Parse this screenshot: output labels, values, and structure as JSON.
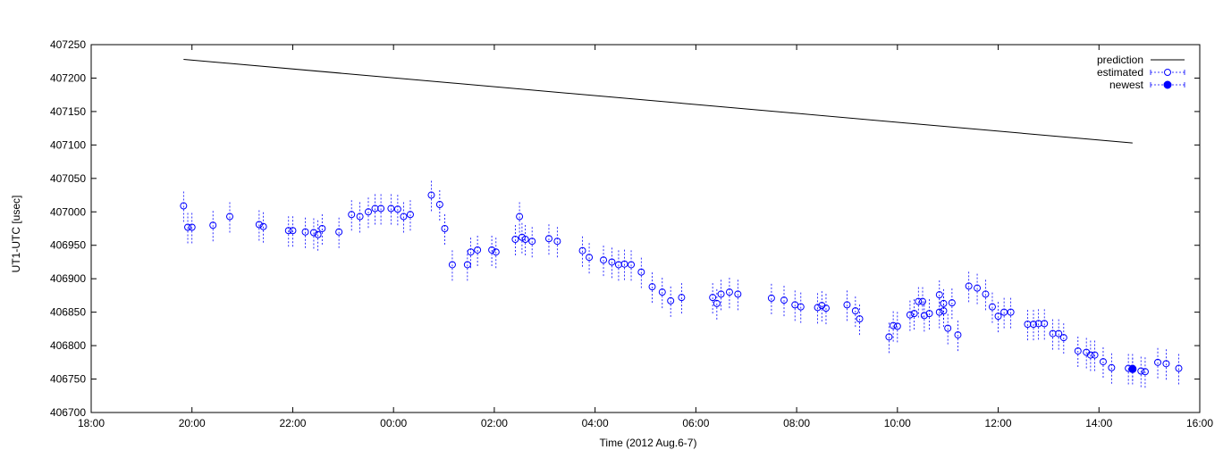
{
  "chart_data": {
    "type": "scatter",
    "xlabel": "Time (2012 Aug.6-7)",
    "ylabel": "UT1-UTC [usec]",
    "xlim": [
      "18:00",
      "16:00"
    ],
    "ylim": [
      406700,
      407250
    ],
    "x_ticks": [
      "18:00",
      "20:00",
      "22:00",
      "00:00",
      "02:00",
      "04:00",
      "06:00",
      "08:00",
      "10:00",
      "12:00",
      "14:00",
      "16:00"
    ],
    "y_ticks": [
      "407250",
      "407200",
      "407150",
      "407100",
      "407050",
      "407000",
      "406950",
      "406900",
      "406850",
      "406800",
      "406750",
      "406700"
    ],
    "legend": {
      "position": "top-right"
    },
    "series": [
      {
        "name": "prediction",
        "style": "line",
        "color": "#000000",
        "points": [
          [
            "19:50",
            407228
          ],
          [
            "14:40",
            407103
          ]
        ]
      },
      {
        "name": "estimated",
        "style": "open-circle-errorbar",
        "color": "#0000ff",
        "error": 24,
        "points": [
          [
            "19:50",
            407009
          ],
          [
            "19:55",
            406977
          ],
          [
            "20:00",
            406977
          ],
          [
            "20:25",
            406980
          ],
          [
            "20:45",
            406993
          ],
          [
            "21:20",
            406981
          ],
          [
            "21:25",
            406978
          ],
          [
            "21:55",
            406972
          ],
          [
            "22:00",
            406972
          ],
          [
            "22:15",
            406970
          ],
          [
            "22:25",
            406969
          ],
          [
            "22:30",
            406966
          ],
          [
            "22:35",
            406975
          ],
          [
            "22:55",
            406970
          ],
          [
            "23:10",
            406996
          ],
          [
            "23:20",
            406993
          ],
          [
            "23:30",
            407000
          ],
          [
            "23:38",
            407005
          ],
          [
            "23:45",
            407005
          ],
          [
            "23:57",
            407005
          ],
          [
            "0:05",
            407004
          ],
          [
            "0:12",
            406993
          ],
          [
            "0:20",
            406996
          ],
          [
            "0:45",
            407025
          ],
          [
            "0:55",
            407011
          ],
          [
            "1:01",
            406975
          ],
          [
            "1:10",
            406921
          ],
          [
            "1:28",
            406921
          ],
          [
            "1:32",
            406940
          ],
          [
            "1:40",
            406943
          ],
          [
            "1:57",
            406943
          ],
          [
            "2:02",
            406940
          ],
          [
            "2:25",
            406959
          ],
          [
            "2:30",
            406993
          ],
          [
            "2:33",
            406962
          ],
          [
            "2:37",
            406959
          ],
          [
            "2:45",
            406956
          ],
          [
            "3:05",
            406960
          ],
          [
            "3:15",
            406956
          ],
          [
            "3:45",
            406942
          ],
          [
            "3:53",
            406932
          ],
          [
            "4:10",
            406928
          ],
          [
            "4:20",
            406925
          ],
          [
            "4:28",
            406921
          ],
          [
            "4:35",
            406922
          ],
          [
            "4:43",
            406921
          ],
          [
            "4:55",
            406910
          ],
          [
            "5:08",
            406888
          ],
          [
            "5:20",
            406880
          ],
          [
            "5:30",
            406867
          ],
          [
            "5:43",
            406872
          ],
          [
            "6:20",
            406872
          ],
          [
            "6:25",
            406863
          ],
          [
            "6:30",
            406877
          ],
          [
            "6:40",
            406880
          ],
          [
            "6:50",
            406877
          ],
          [
            "7:30",
            406871
          ],
          [
            "7:45",
            406868
          ],
          [
            "7:58",
            406861
          ],
          [
            "8:05",
            406858
          ],
          [
            "8:25",
            406857
          ],
          [
            "8:30",
            406860
          ],
          [
            "8:35",
            406856
          ],
          [
            "9:00",
            406861
          ],
          [
            "9:10",
            406852
          ],
          [
            "9:15",
            406840
          ],
          [
            "10:20",
            406848
          ],
          [
            "10:32",
            406845
          ],
          [
            "10:38",
            406848
          ],
          [
            "10:50",
            406850
          ],
          [
            "10:55",
            406852
          ],
          [
            "11:00",
            406826
          ],
          [
            "11:12",
            406816
          ],
          [
            "9:50",
            406813
          ],
          [
            "9:55",
            406830
          ],
          [
            "10:00",
            406829
          ],
          [
            "10:15",
            406846
          ],
          [
            "10:25",
            406866
          ],
          [
            "10:30",
            406866
          ],
          [
            "10:50",
            406876
          ],
          [
            "10:55",
            406863
          ],
          [
            "11:05",
            406864
          ],
          [
            "11:25",
            406889
          ],
          [
            "11:35",
            406886
          ],
          [
            "11:45",
            406877
          ],
          [
            "11:53",
            406858
          ],
          [
            "12:00",
            406844
          ],
          [
            "12:07",
            406850
          ],
          [
            "12:15",
            406850
          ],
          [
            "12:35",
            406832
          ],
          [
            "12:42",
            406832
          ],
          [
            "12:48",
            406833
          ],
          [
            "12:55",
            406833
          ],
          [
            "13:05",
            406818
          ],
          [
            "13:12",
            406818
          ],
          [
            "13:18",
            406812
          ],
          [
            "13:35",
            406792
          ],
          [
            "13:45",
            406790
          ],
          [
            "13:50",
            406786
          ],
          [
            "13:55",
            406786
          ],
          [
            "14:05",
            406776
          ],
          [
            "14:15",
            406767
          ],
          [
            "14:35",
            406766
          ],
          [
            "14:40",
            406766
          ],
          [
            "14:50",
            406762
          ],
          [
            "14:55",
            406761
          ],
          [
            "15:10",
            406775
          ],
          [
            "15:20",
            406773
          ],
          [
            "15:35",
            406766
          ]
        ]
      },
      {
        "name": "newest",
        "style": "filled-circle-errorbar",
        "color": "#0000ff",
        "error": 18,
        "points": [
          [
            "14:40",
            406765
          ]
        ]
      }
    ]
  }
}
